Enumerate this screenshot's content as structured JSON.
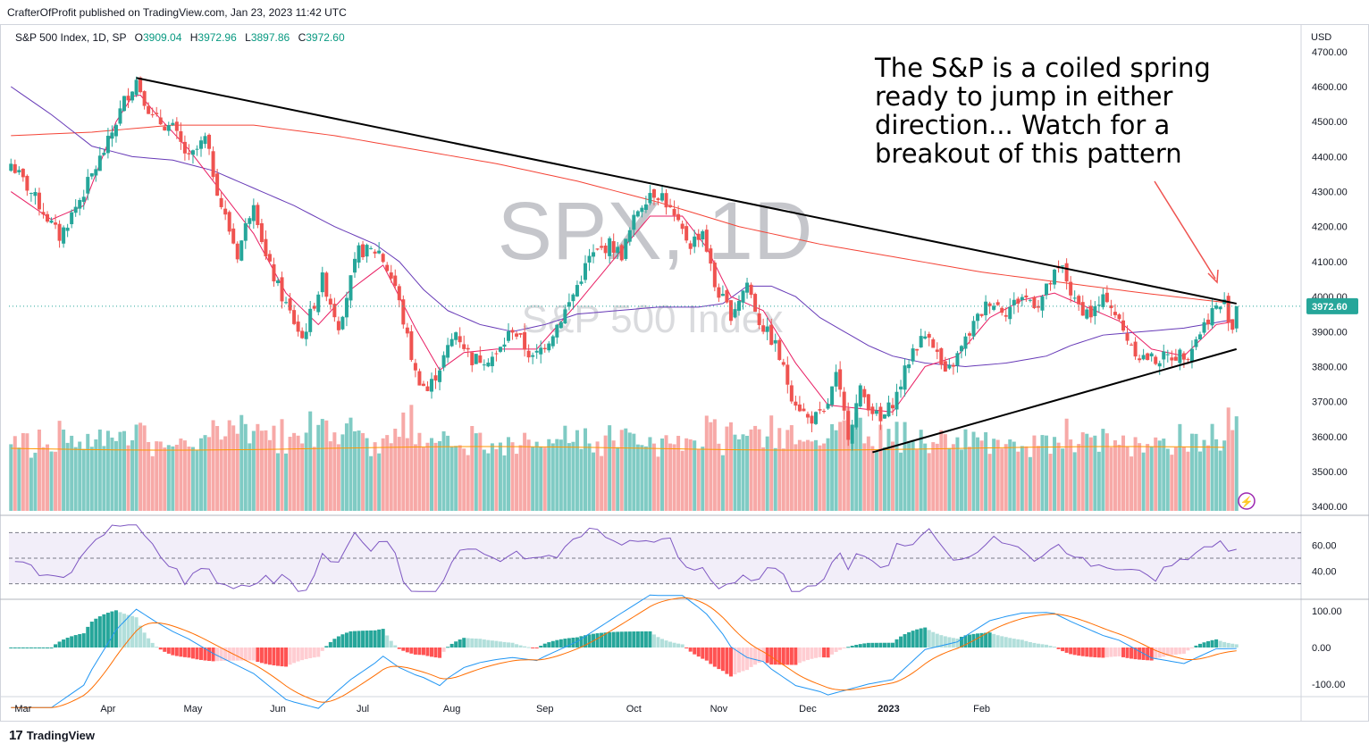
{
  "header": {
    "published": "CrafterOfProfit published on TradingView.com, Jan 23, 2023 11:42 UTC",
    "symbol_line": "S&P 500 Index, 1D, SP",
    "ohlc": [
      {
        "k": "O",
        "v": "3909.04"
      },
      {
        "k": "H",
        "v": "3972.96"
      },
      {
        "k": "L",
        "v": "3897.86"
      },
      {
        "k": "C",
        "v": "3972.60"
      }
    ]
  },
  "watermark": {
    "symbol": "SPX, 1D",
    "name": "S&P 500 Index"
  },
  "annotation": {
    "lines": [
      "The S&P is a coiled spring",
      "ready to jump in either",
      "direction... Watch for a",
      "breakout of this pattern"
    ]
  },
  "footer": {
    "brand": "TradingView",
    "logo_text": "17"
  },
  "colors": {
    "up": "#26a69a",
    "down": "#ef5350",
    "ma_fast": "#e91e63",
    "ma_mid": "#673ab7",
    "ma_slow": "#f44336",
    "rsi": "#7e57c2",
    "macd": "#2196f3",
    "signal": "#ff6d00"
  },
  "chart_data": {
    "type": "candlestick",
    "title": "S&P 500 Index, 1D, SP",
    "currency": "USD",
    "last_price": "3972.60",
    "price_axis": {
      "ylim": [
        3380,
        4720
      ],
      "ticks": [
        "4700.00",
        "4600.00",
        "4500.00",
        "4400.00",
        "4300.00",
        "4200.00",
        "4100.00",
        "4000.00",
        "3900.00",
        "3800.00",
        "3700.00",
        "3600.00",
        "3500.00",
        "3400.00"
      ]
    },
    "time_axis": [
      "Mar",
      "Apr",
      "May",
      "Jun",
      "Jul",
      "Aug",
      "Sep",
      "Oct",
      "Nov",
      "Dec",
      "2023",
      "Feb"
    ],
    "anchors": [
      [
        0,
        4380
      ],
      [
        6,
        4280
      ],
      [
        12,
        4170
      ],
      [
        18,
        4300
      ],
      [
        24,
        4440
      ],
      [
        28,
        4560
      ],
      [
        31,
        4620
      ],
      [
        35,
        4510
      ],
      [
        40,
        4480
      ],
      [
        44,
        4390
      ],
      [
        48,
        4450
      ],
      [
        52,
        4260
      ],
      [
        56,
        4120
      ],
      [
        60,
        4280
      ],
      [
        63,
        4110
      ],
      [
        67,
        4000
      ],
      [
        72,
        3880
      ],
      [
        77,
        4050
      ],
      [
        81,
        3920
      ],
      [
        86,
        4130
      ],
      [
        91,
        4130
      ],
      [
        95,
        4030
      ],
      [
        100,
        3780
      ],
      [
        103,
        3730
      ],
      [
        106,
        3800
      ],
      [
        110,
        3900
      ],
      [
        114,
        3820
      ],
      [
        120,
        3830
      ],
      [
        124,
        3910
      ],
      [
        129,
        3820
      ],
      [
        133,
        3880
      ],
      [
        138,
        3980
      ],
      [
        143,
        4110
      ],
      [
        148,
        4150
      ],
      [
        151,
        4120
      ],
      [
        155,
        4250
      ],
      [
        158,
        4300
      ],
      [
        161,
        4290
      ],
      [
        165,
        4200
      ],
      [
        168,
        4150
      ],
      [
        171,
        4190
      ],
      [
        174,
        4030
      ],
      [
        178,
        3950
      ],
      [
        182,
        4040
      ],
      [
        185,
        3930
      ],
      [
        189,
        3860
      ],
      [
        193,
        3720
      ],
      [
        197,
        3650
      ],
      [
        201,
        3660
      ],
      [
        204,
        3770
      ],
      [
        207,
        3610
      ],
      [
        210,
        3730
      ],
      [
        215,
        3640
      ],
      [
        219,
        3720
      ],
      [
        223,
        3850
      ],
      [
        227,
        3900
      ],
      [
        231,
        3770
      ],
      [
        234,
        3830
      ],
      [
        238,
        3920
      ],
      [
        242,
        3990
      ],
      [
        246,
        3960
      ],
      [
        250,
        4000
      ],
      [
        254,
        3980
      ],
      [
        258,
        4060
      ],
      [
        260,
        4080
      ],
      [
        263,
        3980
      ],
      [
        267,
        3950
      ],
      [
        271,
        4000
      ],
      [
        275,
        3900
      ],
      [
        279,
        3830
      ],
      [
        283,
        3820
      ],
      [
        287,
        3830
      ],
      [
        291,
        3840
      ],
      [
        294,
        3900
      ],
      [
        297,
        3960
      ],
      [
        300,
        3980
      ],
      [
        302,
        3910
      ],
      [
        303,
        3972
      ]
    ],
    "ma_fast": [
      [
        0,
        4300
      ],
      [
        10,
        4220
      ],
      [
        18,
        4260
      ],
      [
        26,
        4500
      ],
      [
        31,
        4590
      ],
      [
        36,
        4520
      ],
      [
        44,
        4420
      ],
      [
        52,
        4300
      ],
      [
        60,
        4180
      ],
      [
        68,
        4010
      ],
      [
        76,
        3920
      ],
      [
        84,
        4020
      ],
      [
        92,
        4090
      ],
      [
        100,
        3910
      ],
      [
        106,
        3790
      ],
      [
        112,
        3840
      ],
      [
        120,
        3850
      ],
      [
        130,
        3850
      ],
      [
        140,
        3980
      ],
      [
        150,
        4120
      ],
      [
        158,
        4230
      ],
      [
        166,
        4230
      ],
      [
        172,
        4140
      ],
      [
        178,
        4000
      ],
      [
        186,
        3960
      ],
      [
        194,
        3810
      ],
      [
        202,
        3690
      ],
      [
        210,
        3680
      ],
      [
        218,
        3670
      ],
      [
        226,
        3800
      ],
      [
        234,
        3830
      ],
      [
        242,
        3940
      ],
      [
        250,
        3990
      ],
      [
        258,
        4010
      ],
      [
        266,
        3970
      ],
      [
        274,
        3930
      ],
      [
        282,
        3850
      ],
      [
        290,
        3830
      ],
      [
        298,
        3920
      ],
      [
        303,
        3930
      ]
    ],
    "ma_mid": [
      [
        0,
        4600
      ],
      [
        10,
        4520
      ],
      [
        20,
        4430
      ],
      [
        30,
        4400
      ],
      [
        40,
        4390
      ],
      [
        50,
        4360
      ],
      [
        60,
        4310
      ],
      [
        70,
        4260
      ],
      [
        80,
        4200
      ],
      [
        90,
        4150
      ],
      [
        96,
        4100
      ],
      [
        102,
        4020
      ],
      [
        108,
        3960
      ],
      [
        116,
        3920
      ],
      [
        124,
        3900
      ],
      [
        132,
        3920
      ],
      [
        140,
        3950
      ],
      [
        150,
        3960
      ],
      [
        160,
        3970
      ],
      [
        170,
        3970
      ],
      [
        176,
        3980
      ],
      [
        182,
        4030
      ],
      [
        188,
        4030
      ],
      [
        194,
        4000
      ],
      [
        200,
        3940
      ],
      [
        206,
        3900
      ],
      [
        212,
        3860
      ],
      [
        218,
        3830
      ],
      [
        226,
        3810
      ],
      [
        236,
        3800
      ],
      [
        246,
        3810
      ],
      [
        256,
        3830
      ],
      [
        262,
        3860
      ],
      [
        270,
        3890
      ],
      [
        280,
        3900
      ],
      [
        290,
        3910
      ],
      [
        300,
        3930
      ],
      [
        303,
        3935
      ]
    ],
    "ma_slow": [
      [
        0,
        4460
      ],
      [
        20,
        4470
      ],
      [
        40,
        4490
      ],
      [
        60,
        4490
      ],
      [
        80,
        4460
      ],
      [
        100,
        4420
      ],
      [
        120,
        4380
      ],
      [
        140,
        4330
      ],
      [
        160,
        4270
      ],
      [
        180,
        4200
      ],
      [
        200,
        4150
      ],
      [
        220,
        4110
      ],
      [
        240,
        4070
      ],
      [
        260,
        4040
      ],
      [
        280,
        4010
      ],
      [
        295,
        3990
      ],
      [
        303,
        3980
      ]
    ],
    "trendlines": [
      {
        "name": "descending-resistance",
        "from": [
          31,
          4625
        ],
        "to": [
          303,
          3980
        ]
      },
      {
        "name": "ascending-support",
        "from": [
          213,
          3555
        ],
        "to": [
          303,
          3850
        ]
      }
    ],
    "rsi": {
      "levels": [
        "60.00",
        "40.00"
      ],
      "upper_band": 70,
      "mid": 50,
      "lower_band": 30,
      "ylim": [
        20,
        80
      ],
      "last": 57
    },
    "macd": {
      "ticks": [
        "100.00",
        "0.00",
        "-100.00"
      ],
      "ylim": [
        -130,
        130
      ]
    }
  }
}
